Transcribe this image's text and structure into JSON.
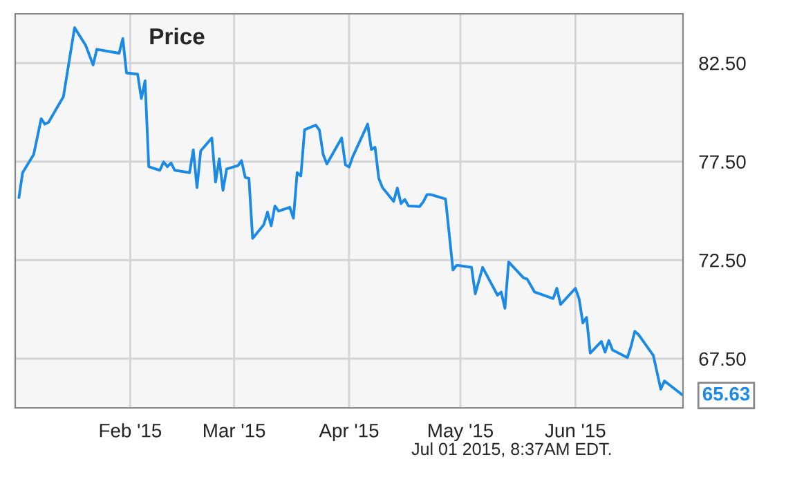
{
  "chart_data": {
    "type": "line",
    "title": "Price",
    "x": [
      "2015-01-02",
      "2015-01-03",
      "2015-01-06",
      "2015-01-08",
      "2015-01-09",
      "2015-01-10",
      "2015-01-14",
      "2015-01-17",
      "2015-01-20",
      "2015-01-22",
      "2015-01-23",
      "2015-01-29",
      "2015-01-30",
      "2015-01-31",
      "2015-02-03",
      "2015-02-04",
      "2015-02-05",
      "2015-02-06",
      "2015-02-09",
      "2015-02-10",
      "2015-02-11",
      "2015-02-12",
      "2015-02-13",
      "2015-02-17",
      "2015-02-18",
      "2015-02-19",
      "2015-02-20",
      "2015-02-23",
      "2015-02-24",
      "2015-02-25",
      "2015-02-26",
      "2015-02-27",
      "2015-03-02",
      "2015-03-03",
      "2015-03-04",
      "2015-03-05",
      "2015-03-06",
      "2015-03-09",
      "2015-03-10",
      "2015-03-11",
      "2015-03-12",
      "2015-03-13",
      "2015-03-16",
      "2015-03-17",
      "2015-03-18",
      "2015-03-19",
      "2015-03-20",
      "2015-03-23",
      "2015-03-24",
      "2015-03-25",
      "2015-03-26",
      "2015-03-30",
      "2015-03-31",
      "2015-04-01",
      "2015-04-02",
      "2015-04-06",
      "2015-04-07",
      "2015-04-08",
      "2015-04-09",
      "2015-04-10",
      "2015-04-13",
      "2015-04-14",
      "2015-04-15",
      "2015-04-16",
      "2015-04-17",
      "2015-04-20",
      "2015-04-21",
      "2015-04-22",
      "2015-04-23",
      "2015-04-27",
      "2015-04-29",
      "2015-04-30",
      "2015-05-04",
      "2015-05-05",
      "2015-05-07",
      "2015-05-11",
      "2015-05-12",
      "2015-05-13",
      "2015-05-14",
      "2015-05-18",
      "2015-05-19",
      "2015-05-21",
      "2015-05-26",
      "2015-05-27",
      "2015-05-28",
      "2015-06-01",
      "2015-06-02",
      "2015-06-03",
      "2015-06-04",
      "2015-06-05",
      "2015-06-08",
      "2015-06-09",
      "2015-06-10",
      "2015-06-11",
      "2015-06-15",
      "2015-06-16",
      "2015-06-17",
      "2015-06-18",
      "2015-06-22",
      "2015-06-24",
      "2015-06-25",
      "2015-06-30"
    ],
    "series": [
      {
        "color": "#1b8ae6",
        "values": [
          75.67,
          76.94,
          77.87,
          79.68,
          79.4,
          79.5,
          80.8,
          84.3,
          83.4,
          82.4,
          83.2,
          83.0,
          83.75,
          82.0,
          81.94,
          80.7,
          81.6,
          77.24,
          77.06,
          77.48,
          77.24,
          77.43,
          77.06,
          76.94,
          78.1,
          76.18,
          78.04,
          78.7,
          76.46,
          77.64,
          76.04,
          77.13,
          77.29,
          77.55,
          76.7,
          76.65,
          73.6,
          74.3,
          74.94,
          74.24,
          75.25,
          74.99,
          75.18,
          74.63,
          76.94,
          76.77,
          79.12,
          79.35,
          79.1,
          77.87,
          77.38,
          78.7,
          77.34,
          77.22,
          77.76,
          79.4,
          78.11,
          78.23,
          76.65,
          76.18,
          75.48,
          76.16,
          75.37,
          75.58,
          75.25,
          75.22,
          75.46,
          75.83,
          75.83,
          75.6,
          72.0,
          72.24,
          72.13,
          70.79,
          72.13,
          70.72,
          70.88,
          70.06,
          72.41,
          71.6,
          71.54,
          70.88,
          70.55,
          71.07,
          70.25,
          71.07,
          70.53,
          69.31,
          69.59,
          67.78,
          68.37,
          67.83,
          68.42,
          67.94,
          67.55,
          68.13,
          68.89,
          68.72,
          67.66,
          65.95,
          66.37,
          65.63
        ]
      }
    ],
    "xlim": [
      "2015-01-01",
      "2015-06-30"
    ],
    "xticks": [
      {
        "value": "2015-02-01",
        "label": "Feb '15"
      },
      {
        "value": "2015-03-01",
        "label": "Mar '15"
      },
      {
        "value": "2015-04-01",
        "label": "Apr '15"
      },
      {
        "value": "2015-05-01",
        "label": "May '15"
      },
      {
        "value": "2015-06-01",
        "label": "Jun '15"
      }
    ],
    "ylim": [
      65,
      85
    ],
    "yticks": [
      {
        "value": 67.5,
        "label": "67.50"
      },
      {
        "value": 72.5,
        "label": "72.50"
      },
      {
        "value": 77.5,
        "label": "77.50"
      },
      {
        "value": 82.5,
        "label": "82.50"
      }
    ],
    "grid": true,
    "marker": "none",
    "line_style": "solid",
    "annotations": [
      {
        "text": "65.63",
        "x": "2015-06-30",
        "y": 65.63
      },
      "Jul 01 2015, 8:37AM EDT."
    ]
  }
}
